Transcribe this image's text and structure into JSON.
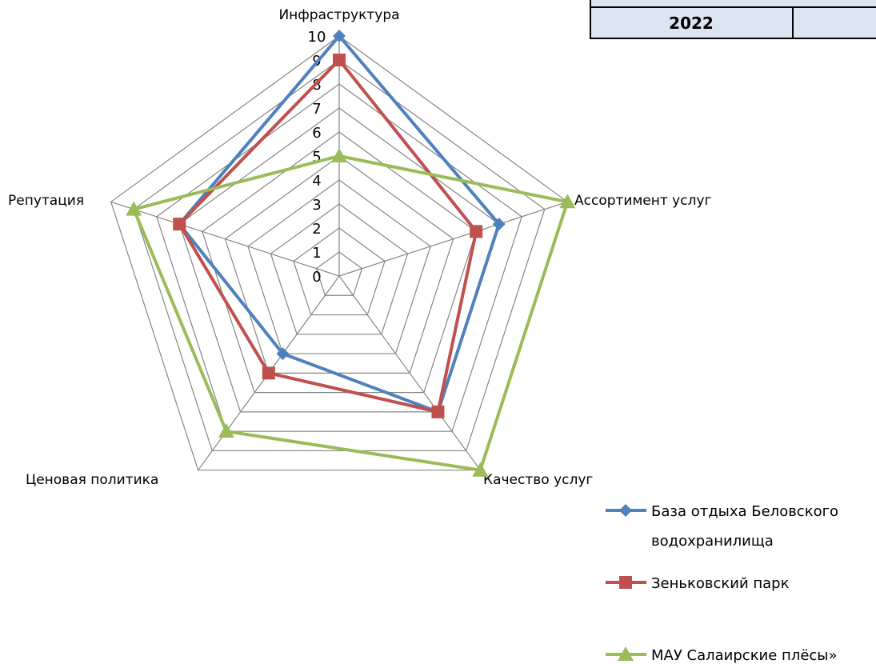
{
  "corner_table": {
    "year": "2022"
  },
  "chart_data": {
    "type": "radar",
    "categories": [
      "Инфраструктура",
      "Ассортимент услуг",
      "Качество услуг",
      "Ценовая политика",
      "Репутация"
    ],
    "range": [
      0,
      10
    ],
    "ticks": [
      0,
      1,
      2,
      3,
      4,
      5,
      6,
      7,
      8,
      9,
      10
    ],
    "grid": true,
    "legend_position": "bottom-right",
    "series": [
      {
        "name": "База отдыха Беловского водохранилища",
        "name_lines": [
          "База отдыха Беловского",
          "водохранилища"
        ],
        "values": [
          10,
          7,
          7,
          4,
          7
        ],
        "color": "#4f81bd",
        "marker": "diamond"
      },
      {
        "name": "Зеньковский парк",
        "name_lines": [
          "Зеньковский парк"
        ],
        "values": [
          9,
          6,
          7,
          5,
          7
        ],
        "color": "#c0504d",
        "marker": "square"
      },
      {
        "name": "МАУ Салаирские плёсы»",
        "name_lines": [
          "МАУ Салаирские плёсы»"
        ],
        "values": [
          5,
          10,
          10,
          8,
          9
        ],
        "color": "#9bbb59",
        "marker": "triangle"
      }
    ]
  }
}
